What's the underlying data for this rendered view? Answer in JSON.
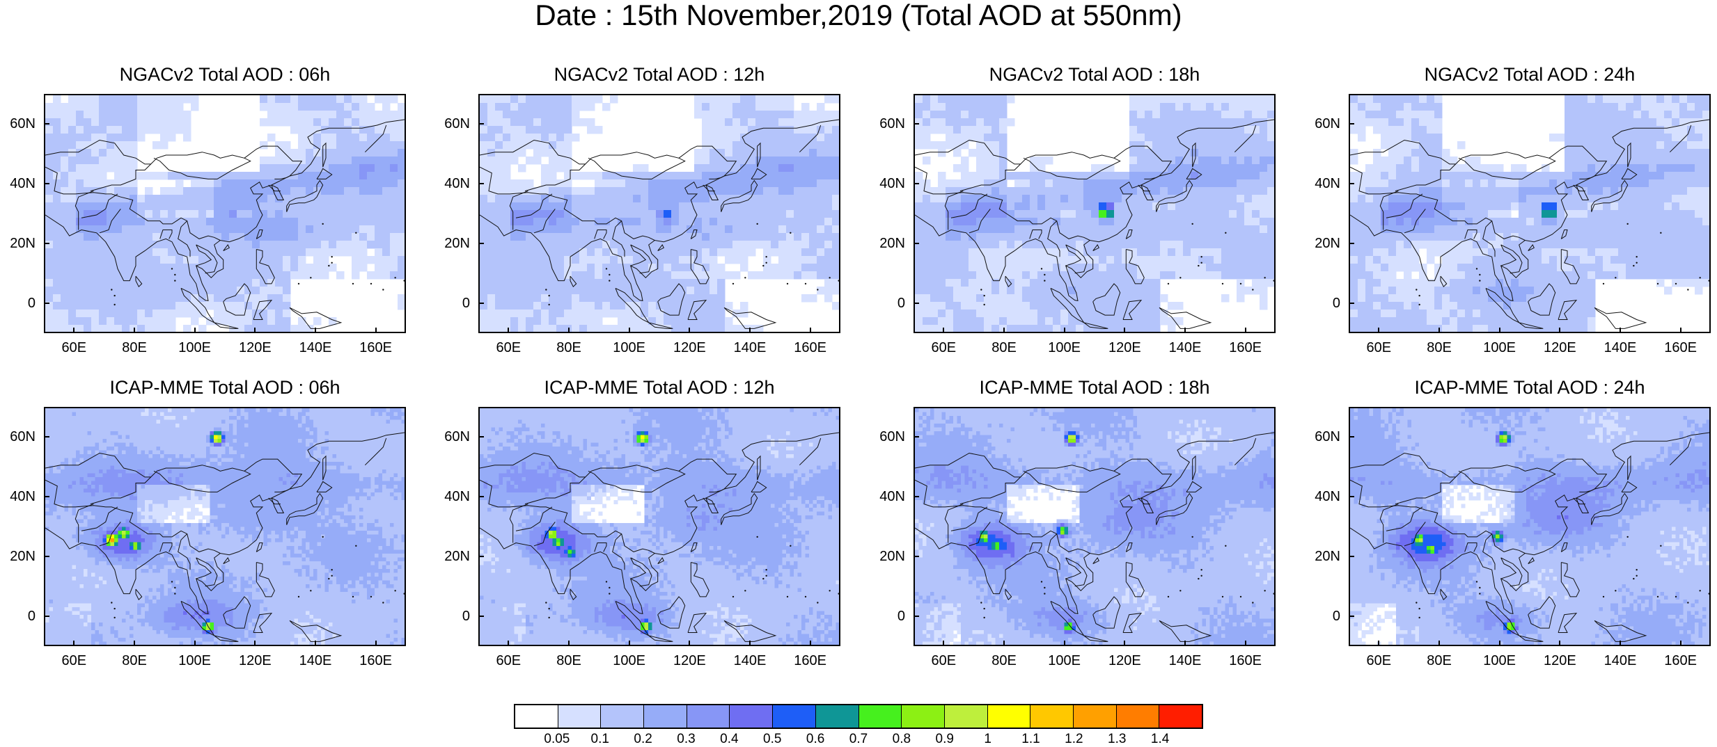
{
  "title": "Date : 15th November,2019 (Total AOD at 550nm)",
  "panels": [
    {
      "title": "NGACv2 Total AOD : 06h",
      "model": "NGACv2",
      "lead": "06h"
    },
    {
      "title": "NGACv2 Total AOD : 12h",
      "model": "NGACv2",
      "lead": "12h"
    },
    {
      "title": "NGACv2 Total AOD : 18h",
      "model": "NGACv2",
      "lead": "18h"
    },
    {
      "title": "NGACv2 Total AOD : 24h",
      "model": "NGACv2",
      "lead": "24h"
    },
    {
      "title": "ICAP-MME Total AOD : 06h",
      "model": "ICAP-MME",
      "lead": "06h"
    },
    {
      "title": "ICAP-MME Total AOD : 12h",
      "model": "ICAP-MME",
      "lead": "12h"
    },
    {
      "title": "ICAP-MME Total AOD : 18h",
      "model": "ICAP-MME",
      "lead": "18h"
    },
    {
      "title": "ICAP-MME Total AOD : 24h",
      "model": "ICAP-MME",
      "lead": "24h"
    }
  ],
  "axes": {
    "lat_range": [
      -10,
      70
    ],
    "lon_range": [
      50,
      170
    ],
    "lat_ticks": [
      {
        "value": 60,
        "label": "60N"
      },
      {
        "value": 40,
        "label": "40N"
      },
      {
        "value": 20,
        "label": "20N"
      },
      {
        "value": 0,
        "label": "0"
      }
    ],
    "lon_ticks": [
      {
        "value": 60,
        "label": "60E"
      },
      {
        "value": 80,
        "label": "80E"
      },
      {
        "value": 100,
        "label": "100E"
      },
      {
        "value": 120,
        "label": "120E"
      },
      {
        "value": 140,
        "label": "140E"
      },
      {
        "value": 160,
        "label": "160E"
      }
    ]
  },
  "colorbar": {
    "colors": [
      "#ffffff",
      "#d6e0ff",
      "#b4c4fb",
      "#96acf8",
      "#8796f6",
      "#6f6ef2",
      "#1e5ef7",
      "#0f9696",
      "#46f01e",
      "#8cf014",
      "#beef3c",
      "#ffff00",
      "#ffc800",
      "#ffa000",
      "#ff7d00",
      "#ff1e00"
    ],
    "labels": [
      "0.05",
      "0.1",
      "0.2",
      "0.3",
      "0.4",
      "0.5",
      "0.6",
      "0.7",
      "0.8",
      "0.9",
      "1",
      "1.1",
      "1.2",
      "1.3",
      "1.4"
    ]
  },
  "map_features": {
    "ngac_hotspots": {
      "06h": [
        [
          112,
          30,
          0.4
        ]
      ],
      "12h": [
        [
          112,
          30,
          0.6
        ]
      ],
      "18h": [
        [
          113,
          31,
          0.85
        ]
      ],
      "24h": [
        [
          116,
          31,
          0.85
        ]
      ]
    },
    "icap_hotspots": {
      "06h": [
        [
          72,
          26,
          1.3
        ],
        [
          76,
          28,
          1.0
        ],
        [
          80,
          24,
          0.9
        ],
        [
          104,
          -3,
          1.0
        ],
        [
          107,
          60,
          1.1
        ]
      ],
      "12h": [
        [
          74,
          28,
          1.0
        ],
        [
          76,
          25,
          0.9
        ],
        [
          80,
          22,
          0.8
        ],
        [
          105,
          -3,
          1.0
        ],
        [
          104,
          60,
          1.1
        ]
      ],
      "18h": [
        [
          73,
          27,
          0.95
        ],
        [
          77,
          24,
          0.85
        ],
        [
          99,
          29,
          0.85
        ],
        [
          101,
          -3,
          0.85
        ],
        [
          102,
          60,
          1.0
        ]
      ],
      "24h": [
        [
          73,
          26,
          0.95
        ],
        [
          77,
          23,
          0.85
        ],
        [
          99,
          27,
          0.85
        ],
        [
          103,
          -3,
          0.95
        ],
        [
          101,
          60,
          1.0
        ]
      ]
    }
  }
}
